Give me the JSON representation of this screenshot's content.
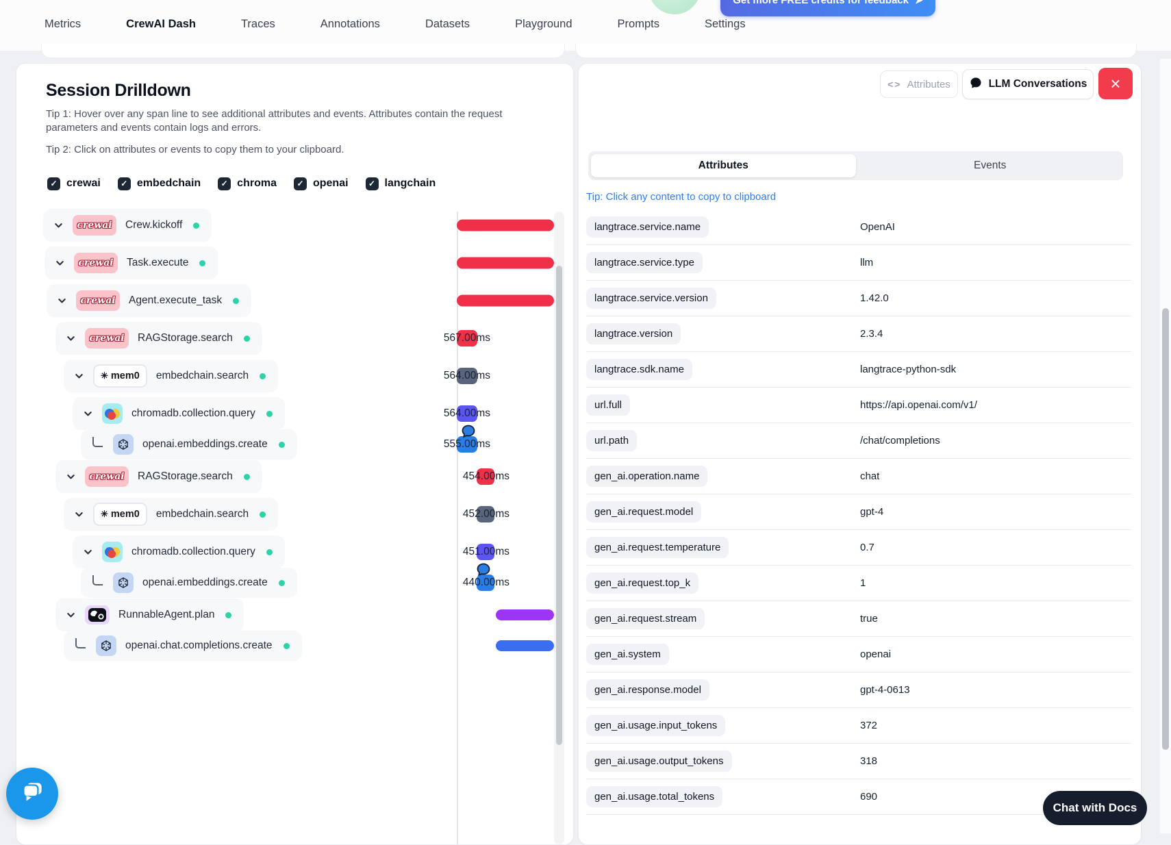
{
  "icons": {
    "arrow": "➤",
    "check": "✓",
    "close": "×",
    "code": "<>"
  },
  "colors": {
    "red": "#ef3048",
    "slate": "#59657a",
    "indigo": "#5d55f2",
    "blue": "#2a7de6",
    "purple": "#9c36f4",
    "blue2": "#3a6df2",
    "teal_dot": "#2bd3a6",
    "close_red": "#f23c4c",
    "link_blue": "#2e7df0",
    "crewai_pink": "#f9c3c9",
    "chroma_cyan": "#a5ebef",
    "langchain_purple": "#e9d6fb"
  },
  "header": {
    "credits_button": "Get more FREE credits for feedback",
    "tabs": [
      {
        "label": "Metrics",
        "active": false
      },
      {
        "label": "CrewAI Dash",
        "active": true
      },
      {
        "label": "Traces",
        "active": false
      },
      {
        "label": "Annotations",
        "active": false
      },
      {
        "label": "Datasets",
        "active": false
      },
      {
        "label": "Playground",
        "active": false
      },
      {
        "label": "Prompts",
        "active": false
      },
      {
        "label": "Settings",
        "active": false
      }
    ]
  },
  "vendors": {
    "crewai": {
      "text": "crewai"
    },
    "mem0": {
      "star": "✳",
      "text": "mem0"
    }
  },
  "left_panel": {
    "title": "Session Drilldown",
    "tip1": "Tip 1: Hover over any span line to see additional attributes and events. Attributes contain the request parameters and events contain logs and errors.",
    "tip2": "Tip 2: Click on attributes or events to copy them to your clipboard.",
    "filters": [
      {
        "label": "crewai",
        "checked": true
      },
      {
        "label": "embedchain",
        "checked": true
      },
      {
        "label": "chroma",
        "checked": true
      },
      {
        "label": "openai",
        "checked": true
      },
      {
        "label": "langchain",
        "checked": true
      }
    ],
    "spans": [
      {
        "label": "Crew.kickoff",
        "vendor": "crewai",
        "connector": "chevron",
        "indent": 39,
        "bar": "long",
        "color": "#ef3048",
        "group": 1,
        "duration": null,
        "bubble": false,
        "sub": false
      },
      {
        "label": "Task.execute",
        "vendor": "crewai",
        "connector": "chevron",
        "indent": 41,
        "bar": "long",
        "color": "#ef3048",
        "group": 1,
        "duration": null,
        "bubble": false,
        "sub": false
      },
      {
        "label": "Agent.execute_task",
        "vendor": "crewai",
        "connector": "chevron",
        "indent": 44,
        "bar": "long",
        "color": "#ef3048",
        "group": 1,
        "duration": null,
        "bubble": false,
        "sub": false
      },
      {
        "label": "RAGStorage.search",
        "vendor": "crewai",
        "connector": "chevron",
        "indent": 57,
        "bar": "badge",
        "color": "#ef3048",
        "group": 1,
        "duration": "567.00ms",
        "bubble": false,
        "sub": false
      },
      {
        "label": "embedchain.search",
        "vendor": "mem0",
        "connector": "chevron",
        "indent": 69,
        "bar": "badge",
        "color": "#59657a",
        "group": 1,
        "duration": "564.00ms",
        "bubble": false,
        "sub": false
      },
      {
        "label": "chromadb.collection.query",
        "vendor": "chroma",
        "connector": "chevron",
        "indent": 82,
        "bar": "badge",
        "color": "#5d55f2",
        "group": 1,
        "duration": "564.00ms",
        "bubble": false,
        "sub": false
      },
      {
        "label": "openai.embeddings.create",
        "vendor": "openai",
        "connector": "elbow",
        "indent": 94,
        "bar": "badge",
        "color": "#2a7de6",
        "group": 1,
        "duration": "555.00ms",
        "bubble": true,
        "sub": true
      },
      {
        "label": "RAGStorage.search",
        "vendor": "crewai",
        "connector": "chevron",
        "indent": 57,
        "bar": "badge",
        "color": "#ef3048",
        "group": 2,
        "duration": "454.00ms",
        "bubble": false,
        "sub": false
      },
      {
        "label": "embedchain.search",
        "vendor": "mem0",
        "connector": "chevron",
        "indent": 69,
        "bar": "badge",
        "color": "#59657a",
        "group": 2,
        "duration": "452.00ms",
        "bubble": false,
        "sub": false
      },
      {
        "label": "chromadb.collection.query",
        "vendor": "chroma",
        "connector": "chevron",
        "indent": 82,
        "bar": "badge",
        "color": "#5d55f2",
        "group": 2,
        "duration": "451.00ms",
        "bubble": false,
        "sub": false
      },
      {
        "label": "openai.embeddings.create",
        "vendor": "openai",
        "connector": "elbow",
        "indent": 94,
        "bar": "badge",
        "color": "#2a7de6",
        "group": 2,
        "duration": "440.00ms",
        "bubble": true,
        "sub": true
      },
      {
        "label": "RunnableAgent.plan",
        "vendor": "langchain",
        "connector": "chevron",
        "indent": 57,
        "bar": "short",
        "color": "#9c36f4",
        "group": 2,
        "duration": null,
        "bubble": false,
        "sub": false
      },
      {
        "label": "openai.chat.completions.create",
        "vendor": "openai",
        "connector": "elbow",
        "indent": 69,
        "bar": "short",
        "color": "#3a6df2",
        "group": 2,
        "duration": null,
        "bubble": false,
        "sub": true
      }
    ]
  },
  "right_panel": {
    "buttons": {
      "attributes": "Attributes",
      "llm": "LLM Conversations"
    },
    "tabs": {
      "attributes": "Attributes",
      "events": "Events"
    },
    "tip": "Tip: Click any content to copy to clipboard",
    "attributes": [
      {
        "key": "langtrace.service.name",
        "value": "OpenAI"
      },
      {
        "key": "langtrace.service.type",
        "value": "llm"
      },
      {
        "key": "langtrace.service.version",
        "value": "1.42.0"
      },
      {
        "key": "langtrace.version",
        "value": "2.3.4"
      },
      {
        "key": "langtrace.sdk.name",
        "value": "langtrace-python-sdk"
      },
      {
        "key": "url.full",
        "value": "https://api.openai.com/v1/"
      },
      {
        "key": "url.path",
        "value": "/chat/completions"
      },
      {
        "key": "gen_ai.operation.name",
        "value": "chat"
      },
      {
        "key": "gen_ai.request.model",
        "value": "gpt-4"
      },
      {
        "key": "gen_ai.request.temperature",
        "value": "0.7"
      },
      {
        "key": "gen_ai.request.top_k",
        "value": "1"
      },
      {
        "key": "gen_ai.request.stream",
        "value": "true"
      },
      {
        "key": "gen_ai.system",
        "value": "openai"
      },
      {
        "key": "gen_ai.response.model",
        "value": "gpt-4-0613"
      },
      {
        "key": "gen_ai.usage.input_tokens",
        "value": "372"
      },
      {
        "key": "gen_ai.usage.output_tokens",
        "value": "318"
      },
      {
        "key": "gen_ai.usage.total_tokens",
        "value": "690"
      }
    ]
  },
  "chat": {
    "docs_label": "Chat with Docs"
  }
}
